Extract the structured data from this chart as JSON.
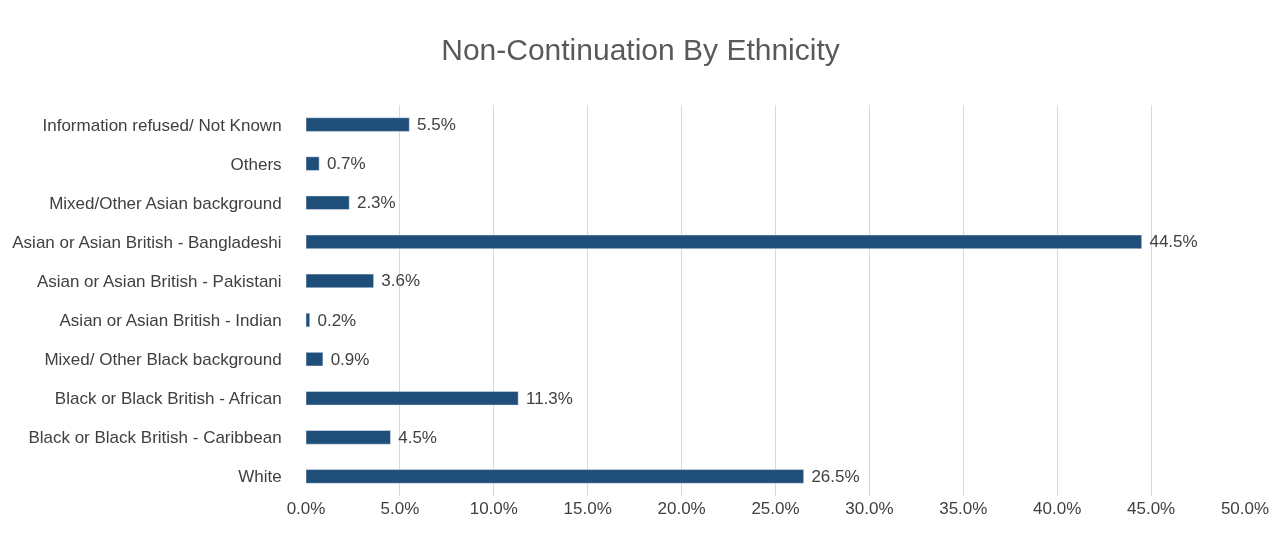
{
  "chart_data": {
    "type": "bar",
    "orientation": "horizontal",
    "title": "Non-Continuation By Ethnicity",
    "categories": [
      "Information refused/ Not Known",
      "Others",
      "Mixed/Other Asian background",
      "Asian or Asian British - Bangladeshi",
      "Asian or Asian British - Pakistani",
      "Asian or Asian British - Indian",
      "Mixed/ Other Black background",
      "Black or Black British - African",
      "Black or Black British - Caribbean",
      "White"
    ],
    "values": [
      5.5,
      0.7,
      2.3,
      44.5,
      3.6,
      0.2,
      0.9,
      11.3,
      4.5,
      26.5
    ],
    "value_labels": [
      "5.5%",
      "0.7%",
      "2.3%",
      "44.5%",
      "3.6%",
      "0.2%",
      "0.9%",
      "11.3%",
      "4.5%",
      "26.5%"
    ],
    "color": "#1f4e79",
    "xlim": [
      0,
      50
    ],
    "xticks": [
      {
        "value": 0,
        "label": "0.0%"
      },
      {
        "value": 5,
        "label": "5.0%"
      },
      {
        "value": 10,
        "label": "10.0%"
      },
      {
        "value": 15,
        "label": "15.0%"
      },
      {
        "value": 20,
        "label": "20.0%"
      },
      {
        "value": 25,
        "label": "25.0%"
      },
      {
        "value": 30,
        "label": "30.0%"
      },
      {
        "value": 35,
        "label": "35.0%"
      },
      {
        "value": 40,
        "label": "40.0%"
      },
      {
        "value": 45,
        "label": "45.0%"
      },
      {
        "value": 50,
        "label": "50.0%"
      }
    ],
    "grid": "x"
  }
}
